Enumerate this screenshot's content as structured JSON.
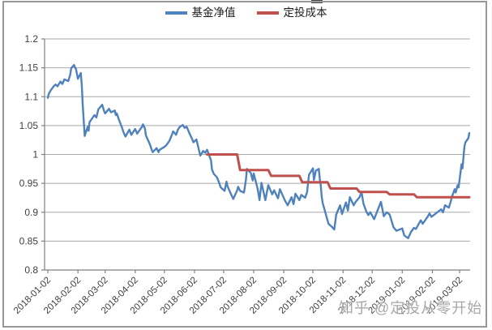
{
  "watermark": {
    "text": "知乎 @定投从零开始"
  },
  "chart_data": {
    "type": "line",
    "title": "",
    "legend_position": "top-center",
    "grid": true,
    "ylim": [
      0.8,
      1.2
    ],
    "y_ticks": [
      0.8,
      0.85,
      0.9,
      0.95,
      1,
      1.05,
      1.1,
      1.15,
      1.2
    ],
    "y_tick_labels": [
      "0.8",
      "0.85",
      "0.9",
      "0.95",
      "1",
      "1.05",
      "1.1",
      "1.15",
      "1.2"
    ],
    "x_tick_labels": [
      "2018-01-02",
      "2018-02-02",
      "2018-03-02",
      "2018-04-02",
      "2018-05-02",
      "2018-06-02",
      "2018-07-02",
      "2018-08-02",
      "2018-09-02",
      "2018-10-02",
      "2018-11-02",
      "2018-12-02",
      "2019-01-02",
      "2019-02-02",
      "2019-03-02"
    ],
    "axis_color": "#808080",
    "grid_color": "#A8A8A8",
    "label_color": "#3f3f3f",
    "series": [
      {
        "name": "基金净值",
        "color": "#4F81BD",
        "width": 2.4,
        "points": [
          [
            "2018-01-02",
            1.098
          ],
          [
            "2018-01-03",
            1.105
          ],
          [
            "2018-01-05",
            1.111
          ],
          [
            "2018-01-08",
            1.118
          ],
          [
            "2018-01-10",
            1.121
          ],
          [
            "2018-01-12",
            1.118
          ],
          [
            "2018-01-15",
            1.126
          ],
          [
            "2018-01-17",
            1.122
          ],
          [
            "2018-01-19",
            1.13
          ],
          [
            "2018-01-23",
            1.127
          ],
          [
            "2018-01-25",
            1.138
          ],
          [
            "2018-01-26",
            1.149
          ],
          [
            "2018-01-29",
            1.155
          ],
          [
            "2018-01-30",
            1.151
          ],
          [
            "2018-01-31",
            1.148
          ],
          [
            "2018-02-01",
            1.14
          ],
          [
            "2018-02-02",
            1.131
          ],
          [
            "2018-02-05",
            1.141
          ],
          [
            "2018-02-06",
            1.12
          ],
          [
            "2018-02-07",
            1.085
          ],
          [
            "2018-02-09",
            1.032
          ],
          [
            "2018-02-12",
            1.048
          ],
          [
            "2018-02-13",
            1.041
          ],
          [
            "2018-02-14",
            1.056
          ],
          [
            "2018-02-19",
            1.068
          ],
          [
            "2018-02-21",
            1.064
          ],
          [
            "2018-02-23",
            1.078
          ],
          [
            "2018-02-27",
            1.086
          ],
          [
            "2018-03-01",
            1.075
          ],
          [
            "2018-03-02",
            1.071
          ],
          [
            "2018-03-06",
            1.079
          ],
          [
            "2018-03-08",
            1.073
          ],
          [
            "2018-03-12",
            1.076
          ],
          [
            "2018-03-13",
            1.068
          ],
          [
            "2018-03-14",
            1.071
          ],
          [
            "2018-03-16",
            1.061
          ],
          [
            "2018-03-19",
            1.048
          ],
          [
            "2018-03-21",
            1.038
          ],
          [
            "2018-03-23",
            1.031
          ],
          [
            "2018-03-27",
            1.043
          ],
          [
            "2018-03-29",
            1.034
          ],
          [
            "2018-04-02",
            1.044
          ],
          [
            "2018-04-04",
            1.036
          ],
          [
            "2018-04-09",
            1.048
          ],
          [
            "2018-04-10",
            1.052
          ],
          [
            "2018-04-12",
            1.045
          ],
          [
            "2018-04-13",
            1.033
          ],
          [
            "2018-04-17",
            1.018
          ],
          [
            "2018-04-19",
            1.008
          ],
          [
            "2018-04-20",
            1.004
          ],
          [
            "2018-04-24",
            1.011
          ],
          [
            "2018-04-26",
            1.004
          ],
          [
            "2018-04-27",
            1.008
          ],
          [
            "2018-05-02",
            1.013
          ],
          [
            "2018-05-04",
            1.016
          ],
          [
            "2018-05-07",
            1.023
          ],
          [
            "2018-05-09",
            1.031
          ],
          [
            "2018-05-11",
            1.04
          ],
          [
            "2018-05-14",
            1.034
          ],
          [
            "2018-05-16",
            1.043
          ],
          [
            "2018-05-18",
            1.048
          ],
          [
            "2018-05-21",
            1.051
          ],
          [
            "2018-05-23",
            1.046
          ],
          [
            "2018-05-25",
            1.048
          ],
          [
            "2018-05-28",
            1.036
          ],
          [
            "2018-05-30",
            1.029
          ],
          [
            "2018-06-01",
            1.021
          ],
          [
            "2018-06-04",
            1.026
          ],
          [
            "2018-06-06",
            1.012
          ],
          [
            "2018-06-08",
            0.998
          ],
          [
            "2018-06-11",
            1.006
          ],
          [
            "2018-06-13",
            1.003
          ],
          [
            "2018-06-15",
            1.008
          ],
          [
            "2018-06-19",
            0.99
          ],
          [
            "2018-06-20",
            0.974
          ],
          [
            "2018-06-22",
            0.966
          ],
          [
            "2018-06-25",
            0.961
          ],
          [
            "2018-06-26",
            0.957
          ],
          [
            "2018-06-28",
            0.948
          ],
          [
            "2018-06-29",
            0.943
          ],
          [
            "2018-07-03",
            0.937
          ],
          [
            "2018-07-05",
            0.953
          ],
          [
            "2018-07-06",
            0.945
          ],
          [
            "2018-07-10",
            0.93
          ],
          [
            "2018-07-12",
            0.923
          ],
          [
            "2018-07-16",
            0.938
          ],
          [
            "2018-07-17",
            0.944
          ],
          [
            "2018-07-19",
            0.937
          ],
          [
            "2018-07-23",
            0.934
          ],
          [
            "2018-07-25",
            0.956
          ],
          [
            "2018-07-26",
            0.975
          ],
          [
            "2018-07-30",
            0.968
          ],
          [
            "2018-08-01",
            0.955
          ],
          [
            "2018-08-02",
            0.967
          ],
          [
            "2018-08-06",
            0.941
          ],
          [
            "2018-08-08",
            0.921
          ],
          [
            "2018-08-10",
            0.951
          ],
          [
            "2018-08-14",
            0.921
          ],
          [
            "2018-08-17",
            0.947
          ],
          [
            "2018-08-21",
            0.931
          ],
          [
            "2018-08-23",
            0.938
          ],
          [
            "2018-08-27",
            0.924
          ],
          [
            "2018-08-29",
            0.94
          ],
          [
            "2018-09-03",
            0.921
          ],
          [
            "2018-09-06",
            0.912
          ],
          [
            "2018-09-10",
            0.926
          ],
          [
            "2018-09-12",
            0.914
          ],
          [
            "2018-09-14",
            0.932
          ],
          [
            "2018-09-18",
            0.921
          ],
          [
            "2018-09-20",
            0.93
          ],
          [
            "2018-09-24",
            0.925
          ],
          [
            "2018-09-26",
            0.935
          ],
          [
            "2018-09-27",
            0.951
          ],
          [
            "2018-09-28",
            0.965
          ],
          [
            "2018-10-02",
            0.976
          ],
          [
            "2018-10-03",
            0.956
          ],
          [
            "2018-10-05",
            0.972
          ],
          [
            "2018-10-08",
            0.975
          ],
          [
            "2018-10-09",
            0.958
          ],
          [
            "2018-10-10",
            0.947
          ],
          [
            "2018-10-11",
            0.927
          ],
          [
            "2018-10-12",
            0.916
          ],
          [
            "2018-10-15",
            0.898
          ],
          [
            "2018-10-18",
            0.88
          ],
          [
            "2018-10-22",
            0.874
          ],
          [
            "2018-10-24",
            0.87
          ],
          [
            "2018-10-26",
            0.896
          ],
          [
            "2018-10-30",
            0.912
          ],
          [
            "2018-11-01",
            0.897
          ],
          [
            "2018-11-05",
            0.917
          ],
          [
            "2018-11-07",
            0.903
          ],
          [
            "2018-11-09",
            0.926
          ],
          [
            "2018-11-13",
            0.912
          ],
          [
            "2018-11-15",
            0.918
          ],
          [
            "2018-11-19",
            0.926
          ],
          [
            "2018-11-21",
            0.935
          ],
          [
            "2018-11-23",
            0.915
          ],
          [
            "2018-11-26",
            0.901
          ],
          [
            "2018-11-28",
            0.895
          ],
          [
            "2018-11-30",
            0.9
          ],
          [
            "2018-12-04",
            0.888
          ],
          [
            "2018-12-07",
            0.901
          ],
          [
            "2018-12-11",
            0.918
          ],
          [
            "2018-12-14",
            0.893
          ],
          [
            "2018-12-17",
            0.9
          ],
          [
            "2018-12-20",
            0.896
          ],
          [
            "2018-12-24",
            0.874
          ],
          [
            "2018-12-27",
            0.868
          ],
          [
            "2019-01-02",
            0.872
          ],
          [
            "2019-01-04",
            0.86
          ],
          [
            "2019-01-08",
            0.855
          ],
          [
            "2019-01-11",
            0.866
          ],
          [
            "2019-01-14",
            0.873
          ],
          [
            "2019-01-16",
            0.871
          ],
          [
            "2019-01-21",
            0.886
          ],
          [
            "2019-01-23",
            0.88
          ],
          [
            "2019-01-28",
            0.892
          ],
          [
            "2019-01-30",
            0.898
          ],
          [
            "2019-02-01",
            0.892
          ],
          [
            "2019-02-11",
            0.905
          ],
          [
            "2019-02-13",
            0.9
          ],
          [
            "2019-02-15",
            0.912
          ],
          [
            "2019-02-19",
            0.908
          ],
          [
            "2019-02-21",
            0.919
          ],
          [
            "2019-02-22",
            0.926
          ],
          [
            "2019-02-25",
            0.94
          ],
          [
            "2019-02-26",
            0.934
          ],
          [
            "2019-02-28",
            0.947
          ],
          [
            "2019-03-01",
            0.943
          ],
          [
            "2019-03-04",
            0.983
          ],
          [
            "2019-03-05",
            0.976
          ],
          [
            "2019-03-07",
            1.014
          ],
          [
            "2019-03-08",
            1.021
          ],
          [
            "2019-03-11",
            1.028
          ],
          [
            "2019-03-12",
            1.037
          ]
        ]
      },
      {
        "name": "定投成本",
        "color": "#C0504D",
        "width": 3,
        "points": [
          [
            "2018-06-15",
            1.0
          ],
          [
            "2018-07-16",
            1.0
          ],
          [
            "2018-07-19",
            0.973
          ],
          [
            "2018-08-17",
            0.973
          ],
          [
            "2018-08-20",
            0.963
          ],
          [
            "2018-09-18",
            0.963
          ],
          [
            "2018-09-21",
            0.952
          ],
          [
            "2018-10-17",
            0.952
          ],
          [
            "2018-10-20",
            0.941
          ],
          [
            "2018-11-16",
            0.941
          ],
          [
            "2018-11-19",
            0.935
          ],
          [
            "2018-12-17",
            0.935
          ],
          [
            "2018-12-20",
            0.931
          ],
          [
            "2019-01-14",
            0.931
          ],
          [
            "2019-01-17",
            0.926
          ],
          [
            "2019-03-12",
            0.926
          ]
        ]
      }
    ]
  }
}
